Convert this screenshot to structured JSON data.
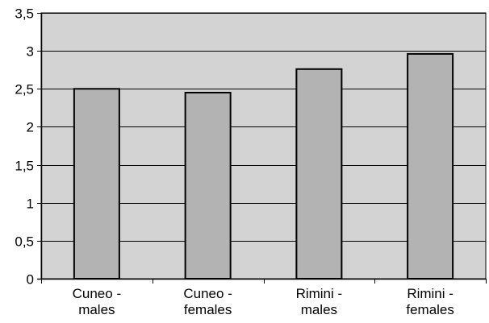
{
  "chart_data": {
    "type": "bar",
    "categories": [
      [
        "Cuneo -",
        "males"
      ],
      [
        "Cuneo -",
        "females"
      ],
      [
        "Rimini -",
        "males"
      ],
      [
        "Rimini -",
        "females"
      ]
    ],
    "values": [
      2.5,
      2.45,
      2.76,
      2.96
    ],
    "yticks": [
      "0",
      "0,5",
      "1",
      "1,5",
      "2",
      "2,5",
      "3",
      "3,5"
    ],
    "ytick_values": [
      0,
      0.5,
      1,
      1.5,
      2,
      2.5,
      3,
      3.5
    ],
    "ylim": [
      0,
      3.5
    ],
    "title": "",
    "xlabel": "",
    "ylabel": "",
    "grid": true,
    "legend": "none",
    "colors": {
      "plot_background": "#d3d3d3",
      "bar_fill": "#b3b3b3",
      "bar_stroke": "#000000",
      "gridline": "#000000",
      "axis": "#000000"
    }
  }
}
